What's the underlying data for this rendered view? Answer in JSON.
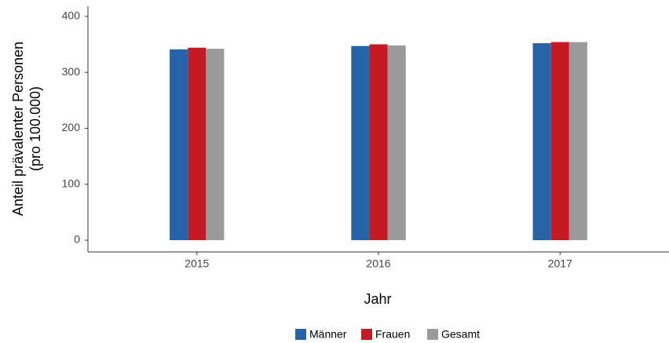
{
  "chart_data": {
    "type": "bar",
    "x_label": "Jahr",
    "y_label": [
      "Anteil prävalenter Personen",
      "(pro 100.000)"
    ],
    "categories": [
      "2015",
      "2016",
      "2017"
    ],
    "series": [
      {
        "name": "Männer",
        "color": "#2663a8",
        "values": [
          341,
          347,
          352
        ]
      },
      {
        "name": "Frauen",
        "color": "#c41a24",
        "values": [
          344,
          350,
          354
        ]
      },
      {
        "name": "Gesamt",
        "color": "#9a9a9a",
        "values": [
          342,
          348,
          354
        ]
      }
    ],
    "ylim": [
      -21,
      418
    ],
    "yticks": [
      0,
      100,
      200,
      300,
      400
    ],
    "legend": "bottom"
  }
}
